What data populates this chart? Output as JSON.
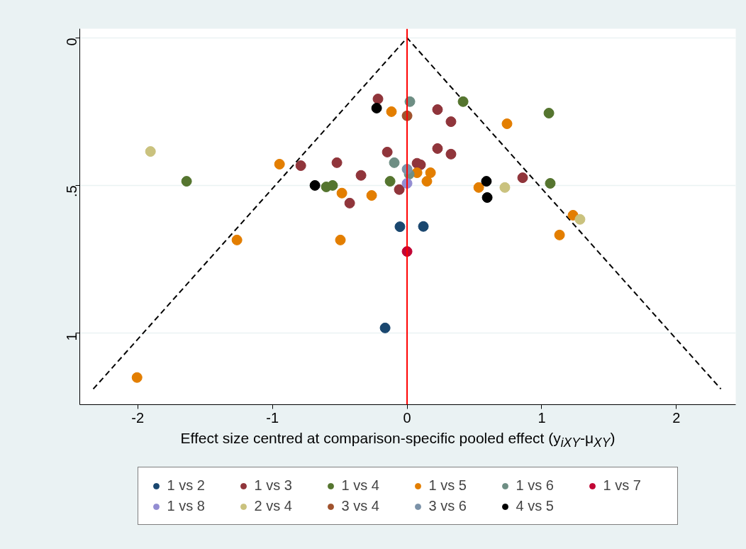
{
  "chart_data": {
    "type": "scatter",
    "xlabel": "Effect size centred at comparison-specific pooled effect (y$_{iXY}$-μ$_{XY}$)",
    "xlim": [
      -2.43,
      2.44
    ],
    "ylim": [
      1.243,
      -0.031
    ],
    "xticks": [
      -2,
      -1,
      0,
      1,
      2
    ],
    "yticks": [
      0,
      {
        "value": 0.5,
        "label": ".5"
      },
      1
    ],
    "grid": "y",
    "legend": "bottom",
    "marker": "circle",
    "ref_lines": [
      {
        "axis": "x",
        "value": 0,
        "color": "#ff0000"
      }
    ],
    "series": [
      {
        "type": "line",
        "color": "#000000",
        "line_style": "dashed",
        "marker": "none",
        "x": [
          -2.33,
          0,
          2.33
        ],
        "values": [
          1.19,
          0,
          1.19
        ]
      },
      {
        "name": "1 vs 2",
        "color": "#1a476f",
        "x": [
          -0.053,
          0.121,
          -0.163
        ],
        "values": [
          0.64,
          0.639,
          0.983
        ]
      },
      {
        "name": "1 vs 3",
        "color": "#90353b",
        "x": [
          -0.216,
          0.226,
          0.326,
          -0.147,
          0.226,
          0.326,
          -0.521,
          -0.342,
          0.074,
          0.1,
          -0.058,
          -0.426,
          0.858,
          -0.789
        ],
        "values": [
          0.207,
          0.243,
          0.284,
          0.387,
          0.375,
          0.394,
          0.423,
          0.466,
          0.425,
          0.43,
          0.514,
          0.56,
          0.474,
          0.433
        ]
      },
      {
        "name": "1 vs 4",
        "color": "#55752f",
        "x": [
          0.416,
          1.053,
          -1.637,
          -0.6,
          -0.553,
          -0.126,
          1.063
        ],
        "values": [
          0.216,
          0.255,
          0.486,
          0.505,
          0.5,
          0.486,
          0.493
        ]
      },
      {
        "name": "1 vs 5",
        "color": "#e37e00",
        "x": [
          -0.116,
          0.742,
          -0.947,
          0.074,
          0.174,
          0.147,
          -0.484,
          -0.263,
          0.532,
          1.232,
          1.132,
          -1.263,
          -0.495,
          -2.005
        ],
        "values": [
          0.25,
          0.291,
          0.428,
          0.457,
          0.457,
          0.486,
          0.526,
          0.534,
          0.507,
          0.601,
          0.668,
          0.685,
          0.685,
          1.151
        ]
      },
      {
        "name": "1 vs 6",
        "color": "#6e8e84",
        "x": [
          0.021,
          -0.095,
          0.016
        ],
        "values": [
          0.216,
          0.423,
          0.462
        ]
      },
      {
        "name": "1 vs 7",
        "color": "#c10534",
        "x": [
          0
        ],
        "values": [
          0.724
        ]
      },
      {
        "name": "1 vs 8",
        "color": "#938dd2",
        "x": [
          0
        ],
        "values": [
          0.493
        ]
      },
      {
        "name": "2 vs 4",
        "color": "#cac27e",
        "x": [
          -1.905,
          0.726,
          1.284
        ],
        "values": [
          0.385,
          0.507,
          0.615
        ]
      },
      {
        "name": "3 vs 4",
        "color": "#a0522d",
        "x": [
          0
        ],
        "values": [
          0.264
        ]
      },
      {
        "name": "3 vs 6",
        "color": "#7b92a8",
        "x": [
          0
        ],
        "values": [
          0.445
        ]
      },
      {
        "name": "4 vs 5",
        "color": "#000000",
        "x": [
          -0.226,
          -0.684,
          0.589,
          0.595
        ],
        "values": [
          0.238,
          0.5,
          0.486,
          0.541
        ]
      }
    ]
  }
}
